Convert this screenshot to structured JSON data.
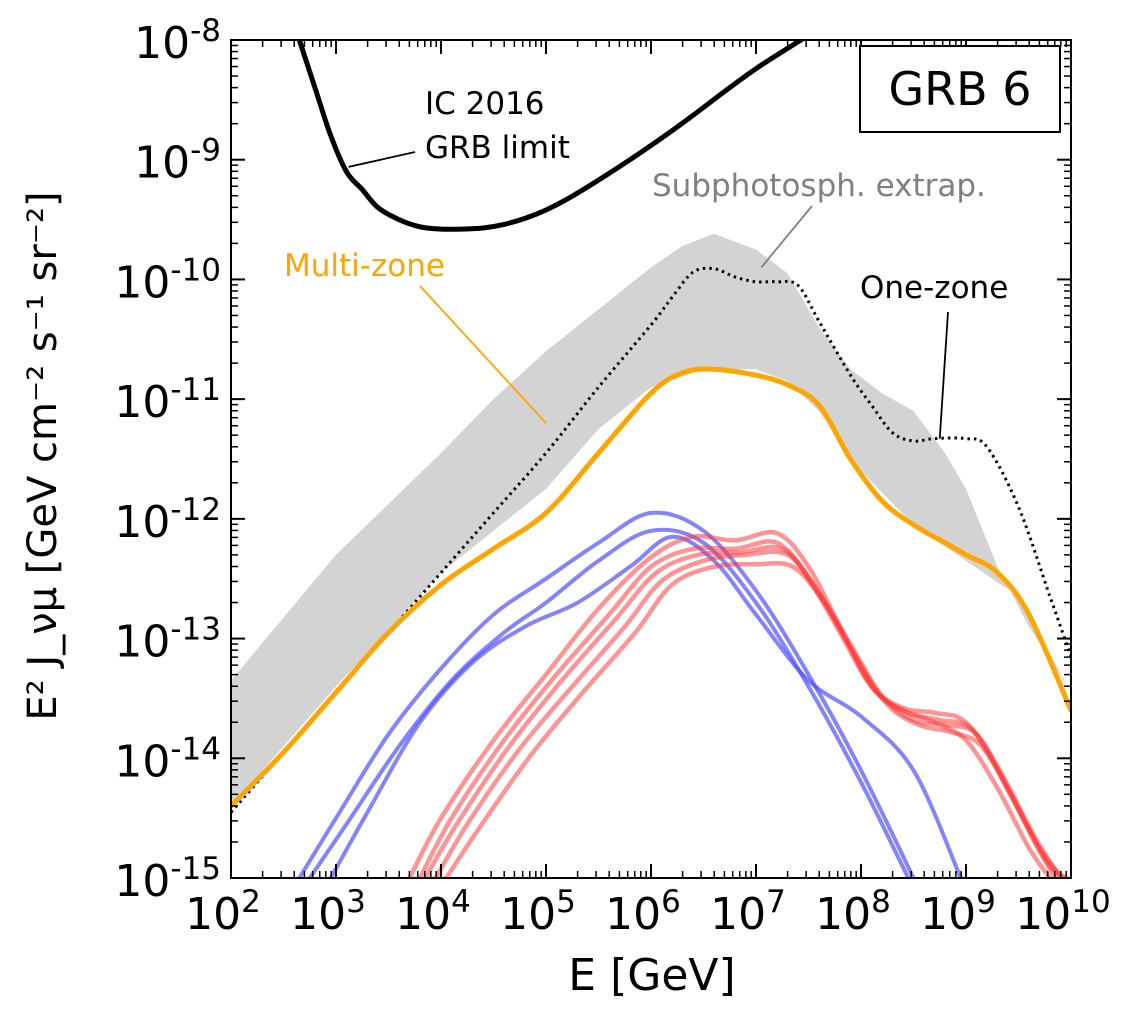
{
  "chart_data": {
    "type": "line",
    "title": "GRB 6",
    "xlabel": "E [GeV]",
    "ylabel": "E² J_νμ [GeV cm⁻² s⁻¹ sr⁻²]",
    "xscale": "log",
    "yscale": "log",
    "xlim_log10": [
      2,
      10
    ],
    "ylim_log10": [
      -15,
      -8
    ],
    "x_ticks": [
      {
        "base": "10",
        "exp": "2",
        "log": 2
      },
      {
        "base": "10",
        "exp": "3",
        "log": 3
      },
      {
        "base": "10",
        "exp": "4",
        "log": 4
      },
      {
        "base": "10",
        "exp": "5",
        "log": 5
      },
      {
        "base": "10",
        "exp": "6",
        "log": 6
      },
      {
        "base": "10",
        "exp": "7",
        "log": 7
      },
      {
        "base": "10",
        "exp": "8",
        "log": 8
      },
      {
        "base": "10",
        "exp": "9",
        "log": 9
      },
      {
        "base": "10",
        "exp": "10",
        "log": 10
      }
    ],
    "y_ticks": [
      {
        "base": "10",
        "exp": "-8",
        "log": -8
      },
      {
        "base": "10",
        "exp": "-9",
        "log": -9
      },
      {
        "base": "10",
        "exp": "-10",
        "log": -10
      },
      {
        "base": "10",
        "exp": "-11",
        "log": -11
      },
      {
        "base": "10",
        "exp": "-12",
        "log": -12
      },
      {
        "base": "10",
        "exp": "-13",
        "log": -13
      },
      {
        "base": "10",
        "exp": "-14",
        "log": -14
      },
      {
        "base": "10",
        "exp": "-15",
        "log": -15
      }
    ],
    "band": {
      "name": "Subphotosph. extrap.",
      "color": "#d3d3d3",
      "upper": [
        [
          2,
          -13.35
        ],
        [
          3,
          -12.3
        ],
        [
          4,
          -11.45
        ],
        [
          4.5,
          -11.0
        ],
        [
          5,
          -10.6
        ],
        [
          5.5,
          -10.25
        ],
        [
          6,
          -9.9
        ],
        [
          6.3,
          -9.72
        ],
        [
          6.6,
          -9.62
        ],
        [
          7,
          -9.75
        ],
        [
          7.3,
          -9.95
        ],
        [
          7.6,
          -10.4
        ],
        [
          7.9,
          -10.75
        ],
        [
          8.2,
          -10.95
        ],
        [
          8.5,
          -11.1
        ],
        [
          8.8,
          -11.45
        ],
        [
          9,
          -11.75
        ],
        [
          9.3,
          -12.4
        ],
        [
          9.6,
          -12.9
        ],
        [
          10,
          -13.45
        ]
      ],
      "lower": [
        [
          2,
          -14.4
        ],
        [
          3,
          -13.4
        ],
        [
          4,
          -12.45
        ],
        [
          5,
          -11.75
        ],
        [
          5.5,
          -11.25
        ],
        [
          6,
          -10.9
        ],
        [
          6.5,
          -10.75
        ],
        [
          7,
          -10.75
        ],
        [
          7.3,
          -10.85
        ],
        [
          7.6,
          -11.1
        ],
        [
          8,
          -11.6
        ],
        [
          8.5,
          -12.05
        ],
        [
          9,
          -12.35
        ],
        [
          9.5,
          -12.65
        ],
        [
          10,
          -13.45
        ]
      ]
    },
    "series": [
      {
        "name": "IC 2016 GRB limit",
        "color": "#000000",
        "style": "solid",
        "points": [
          [
            2.65,
            -8.0
          ],
          [
            2.8,
            -8.4
          ],
          [
            2.95,
            -8.8
          ],
          [
            3.1,
            -9.1
          ],
          [
            3.25,
            -9.25
          ],
          [
            3.4,
            -9.4
          ],
          [
            3.6,
            -9.5
          ],
          [
            3.8,
            -9.56
          ],
          [
            4.0,
            -9.58
          ],
          [
            4.2,
            -9.58
          ],
          [
            4.4,
            -9.57
          ],
          [
            4.6,
            -9.54
          ],
          [
            4.8,
            -9.49
          ],
          [
            5.0,
            -9.42
          ],
          [
            5.2,
            -9.33
          ],
          [
            5.5,
            -9.17
          ],
          [
            5.8,
            -9.0
          ],
          [
            6.1,
            -8.82
          ],
          [
            6.4,
            -8.63
          ],
          [
            6.7,
            -8.43
          ],
          [
            7.0,
            -8.24
          ],
          [
            7.3,
            -8.07
          ],
          [
            7.5,
            -7.96
          ]
        ]
      },
      {
        "name": "One-zone",
        "color": "#000000",
        "style": "dotted",
        "points": [
          [
            2,
            -14.45
          ],
          [
            2.5,
            -13.95
          ],
          [
            3,
            -13.45
          ],
          [
            3.5,
            -12.95
          ],
          [
            4,
            -12.45
          ],
          [
            4.5,
            -11.95
          ],
          [
            5,
            -11.45
          ],
          [
            5.5,
            -10.9
          ],
          [
            6,
            -10.38
          ],
          [
            6.2,
            -10.15
          ],
          [
            6.4,
            -9.94
          ],
          [
            6.6,
            -9.91
          ],
          [
            6.8,
            -9.98
          ],
          [
            7,
            -10.02
          ],
          [
            7.2,
            -10.02
          ],
          [
            7.4,
            -10.05
          ],
          [
            7.6,
            -10.35
          ],
          [
            7.9,
            -10.8
          ],
          [
            8.1,
            -11.05
          ],
          [
            8.3,
            -11.28
          ],
          [
            8.5,
            -11.35
          ],
          [
            8.7,
            -11.33
          ],
          [
            9.0,
            -11.33
          ],
          [
            9.2,
            -11.4
          ],
          [
            9.5,
            -11.9
          ],
          [
            9.8,
            -12.65
          ],
          [
            10,
            -13.15
          ]
        ]
      },
      {
        "name": "Multi-zone",
        "color": "#ffa500",
        "style": "solid",
        "points": [
          [
            2,
            -14.4
          ],
          [
            2.5,
            -13.95
          ],
          [
            3,
            -13.45
          ],
          [
            3.5,
            -12.95
          ],
          [
            4,
            -12.55
          ],
          [
            4.5,
            -12.25
          ],
          [
            5,
            -11.95
          ],
          [
            5.5,
            -11.45
          ],
          [
            6,
            -10.95
          ],
          [
            6.3,
            -10.78
          ],
          [
            6.6,
            -10.75
          ],
          [
            7,
            -10.8
          ],
          [
            7.3,
            -10.88
          ],
          [
            7.6,
            -11.05
          ],
          [
            7.9,
            -11.5
          ],
          [
            8.2,
            -11.85
          ],
          [
            8.5,
            -12.05
          ],
          [
            8.8,
            -12.2
          ],
          [
            9,
            -12.3
          ],
          [
            9.3,
            -12.45
          ],
          [
            9.6,
            -12.8
          ],
          [
            10,
            -13.6
          ]
        ]
      },
      {
        "name": "Blue 1",
        "color": "rgba(80,80,255,0.7)",
        "style": "solid",
        "points": [
          [
            2.65,
            -15.0
          ],
          [
            3.0,
            -14.5
          ],
          [
            3.5,
            -13.8
          ],
          [
            4.0,
            -13.25
          ],
          [
            4.5,
            -12.8
          ],
          [
            5.0,
            -12.5
          ],
          [
            5.5,
            -12.2
          ],
          [
            6.0,
            -11.95
          ],
          [
            6.5,
            -12.1
          ],
          [
            7.0,
            -12.6
          ],
          [
            7.5,
            -13.3
          ],
          [
            8.0,
            -14.1
          ],
          [
            8.5,
            -15.0
          ]
        ]
      },
      {
        "name": "Blue 2",
        "color": "rgba(80,80,255,0.7)",
        "style": "solid",
        "points": [
          [
            2.75,
            -15.0
          ],
          [
            3.1,
            -14.55
          ],
          [
            3.6,
            -13.9
          ],
          [
            4.1,
            -13.35
          ],
          [
            4.6,
            -12.95
          ],
          [
            5.0,
            -12.7
          ],
          [
            5.5,
            -12.35
          ],
          [
            6.0,
            -12.1
          ],
          [
            6.5,
            -12.2
          ],
          [
            7.0,
            -12.7
          ],
          [
            7.5,
            -13.4
          ],
          [
            8.0,
            -14.2
          ],
          [
            8.45,
            -15.0
          ]
        ]
      },
      {
        "name": "Blue 3",
        "color": "rgba(80,80,255,0.7)",
        "style": "solid",
        "points": [
          [
            2.95,
            -15.0
          ],
          [
            3.3,
            -14.45
          ],
          [
            3.8,
            -13.7
          ],
          [
            4.3,
            -13.2
          ],
          [
            4.8,
            -12.9
          ],
          [
            5.3,
            -12.7
          ],
          [
            5.8,
            -12.4
          ],
          [
            6.2,
            -12.15
          ],
          [
            6.6,
            -12.35
          ],
          [
            7.0,
            -12.8
          ],
          [
            7.5,
            -13.35
          ],
          [
            8.0,
            -13.65
          ],
          [
            8.5,
            -14.1
          ],
          [
            8.95,
            -15.0
          ]
        ]
      },
      {
        "name": "Red 1",
        "color": "rgba(255,60,60,0.55)",
        "style": "solid",
        "points": [
          [
            3.7,
            -15.0
          ],
          [
            4.0,
            -14.5
          ],
          [
            4.5,
            -13.85
          ],
          [
            5.0,
            -13.3
          ],
          [
            5.5,
            -12.75
          ],
          [
            6.0,
            -12.32
          ],
          [
            6.4,
            -12.15
          ],
          [
            6.8,
            -12.18
          ],
          [
            7.2,
            -12.12
          ],
          [
            7.5,
            -12.4
          ],
          [
            7.8,
            -12.9
          ],
          [
            8.1,
            -13.4
          ],
          [
            8.4,
            -13.6
          ],
          [
            8.7,
            -13.7
          ],
          [
            9.0,
            -13.85
          ],
          [
            9.3,
            -14.25
          ],
          [
            9.6,
            -14.75
          ],
          [
            9.8,
            -15.0
          ]
        ]
      },
      {
        "name": "Red 2",
        "color": "rgba(255,60,60,0.55)",
        "style": "solid",
        "points": [
          [
            3.8,
            -15.0
          ],
          [
            4.1,
            -14.5
          ],
          [
            4.6,
            -13.85
          ],
          [
            5.1,
            -13.3
          ],
          [
            5.6,
            -12.8
          ],
          [
            6.0,
            -12.4
          ],
          [
            6.4,
            -12.25
          ],
          [
            6.8,
            -12.25
          ],
          [
            7.2,
            -12.2
          ],
          [
            7.5,
            -12.5
          ],
          [
            7.8,
            -12.95
          ],
          [
            8.1,
            -13.4
          ],
          [
            8.4,
            -13.58
          ],
          [
            8.7,
            -13.62
          ],
          [
            9.0,
            -13.7
          ],
          [
            9.3,
            -14.1
          ],
          [
            9.6,
            -14.6
          ],
          [
            9.85,
            -15.0
          ]
        ]
      },
      {
        "name": "Red 3",
        "color": "rgba(255,60,60,0.55)",
        "style": "solid",
        "points": [
          [
            3.85,
            -15.0
          ],
          [
            4.15,
            -14.55
          ],
          [
            4.65,
            -13.9
          ],
          [
            5.15,
            -13.35
          ],
          [
            5.65,
            -12.85
          ],
          [
            6.05,
            -12.45
          ],
          [
            6.45,
            -12.3
          ],
          [
            6.85,
            -12.28
          ],
          [
            7.25,
            -12.25
          ],
          [
            7.55,
            -12.55
          ],
          [
            7.85,
            -13.0
          ],
          [
            8.15,
            -13.45
          ],
          [
            8.45,
            -13.62
          ],
          [
            8.75,
            -13.68
          ],
          [
            9.05,
            -13.75
          ],
          [
            9.35,
            -14.15
          ],
          [
            9.65,
            -14.65
          ],
          [
            9.9,
            -15.0
          ]
        ]
      },
      {
        "name": "Red 4",
        "color": "rgba(255,60,60,0.55)",
        "style": "solid",
        "points": [
          [
            3.95,
            -15.0
          ],
          [
            4.25,
            -14.55
          ],
          [
            4.75,
            -13.92
          ],
          [
            5.25,
            -13.4
          ],
          [
            5.75,
            -12.9
          ],
          [
            6.1,
            -12.52
          ],
          [
            6.5,
            -12.35
          ],
          [
            6.9,
            -12.3
          ],
          [
            7.3,
            -12.3
          ],
          [
            7.6,
            -12.62
          ],
          [
            7.9,
            -13.05
          ],
          [
            8.2,
            -13.48
          ],
          [
            8.5,
            -13.68
          ],
          [
            8.8,
            -13.72
          ],
          [
            9.1,
            -13.8
          ],
          [
            9.4,
            -14.25
          ],
          [
            9.7,
            -14.75
          ],
          [
            9.92,
            -15.0
          ]
        ]
      },
      {
        "name": "Red 5",
        "color": "rgba(255,60,60,0.55)",
        "style": "solid",
        "points": [
          [
            4.05,
            -15.0
          ],
          [
            4.35,
            -14.6
          ],
          [
            4.85,
            -13.98
          ],
          [
            5.35,
            -13.45
          ],
          [
            5.85,
            -12.95
          ],
          [
            6.2,
            -12.55
          ],
          [
            6.6,
            -12.4
          ],
          [
            7.0,
            -12.38
          ],
          [
            7.35,
            -12.4
          ],
          [
            7.65,
            -12.7
          ],
          [
            7.95,
            -13.15
          ],
          [
            8.25,
            -13.55
          ],
          [
            8.55,
            -13.72
          ],
          [
            8.85,
            -13.78
          ],
          [
            9.15,
            -13.9
          ],
          [
            9.45,
            -14.35
          ],
          [
            9.75,
            -14.85
          ],
          [
            9.95,
            -15.0
          ]
        ]
      }
    ],
    "annotations": [
      {
        "text": "IC 2016",
        "anchor_log": [
          3.12,
          -9.06
        ]
      },
      {
        "text": "GRB limit",
        "anchor_log": [
          3.12,
          -9.06
        ]
      },
      {
        "text": "Subphotosph. extrap.",
        "anchor_log": [
          7.05,
          -9.9
        ]
      },
      {
        "text": "Multi-zone",
        "anchor_log": [
          5.0,
          -11.2
        ]
      },
      {
        "text": "One-zone",
        "anchor_log": [
          8.75,
          -11.33
        ]
      }
    ]
  }
}
